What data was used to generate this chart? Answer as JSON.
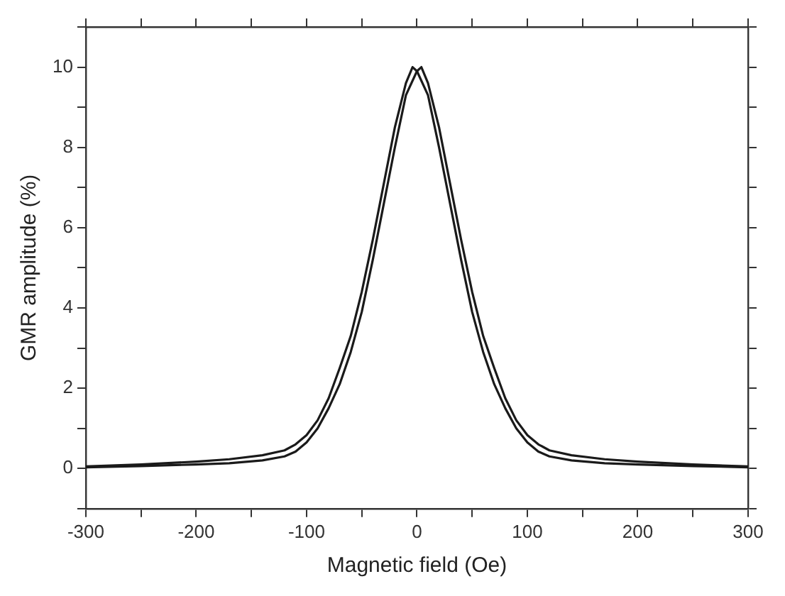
{
  "chart_data": {
    "type": "line",
    "xlabel": "Magnetic field (Oe)",
    "ylabel": "GMR amplitude (%)",
    "xlim": [
      -300,
      300
    ],
    "ylim": [
      -1,
      11
    ],
    "xticks": [
      -300,
      {
        "value": -250,
        "label": null
      },
      -200,
      {
        "value": -150,
        "label": null
      },
      -100,
      {
        "value": -50,
        "label": null
      },
      0,
      {
        "value": 50,
        "label": null
      },
      100,
      {
        "value": 150,
        "label": null
      },
      200,
      {
        "value": 250,
        "label": null
      },
      300
    ],
    "yticks": [
      {
        "value": -1,
        "label": null
      },
      0,
      {
        "value": 1,
        "label": null
      },
      2,
      {
        "value": 3,
        "label": null
      },
      4,
      {
        "value": 5,
        "label": null
      },
      6,
      {
        "value": 7,
        "label": null
      },
      8,
      {
        "value": 9,
        "label": null
      },
      10,
      {
        "value": 11,
        "label": null
      }
    ],
    "grid": false,
    "legend": false,
    "marker": "none",
    "line_style": "solid",
    "series": [
      {
        "color": "#1a1a1a",
        "x": [
          -300,
          -250,
          -200,
          -170,
          -140,
          -120,
          -110,
          -100,
          -90,
          -80,
          -70,
          -60,
          -50,
          -40,
          -30,
          -20,
          -10,
          -4,
          0,
          10,
          20,
          30,
          40,
          50,
          60,
          70,
          80,
          90,
          100,
          110,
          120,
          140,
          170,
          200,
          250,
          300
        ],
        "values": [
          0.05,
          0.1,
          0.17,
          0.23,
          0.33,
          0.45,
          0.6,
          0.83,
          1.2,
          1.75,
          2.5,
          3.3,
          4.4,
          5.7,
          7.1,
          8.5,
          9.6,
          10,
          9.9,
          9.3,
          8,
          6.6,
          5.2,
          3.9,
          2.9,
          2.1,
          1.5,
          1,
          0.65,
          0.42,
          0.3,
          0.2,
          0.13,
          0.1,
          0.06,
          0.03
        ]
      },
      {
        "color": "#1a1a1a",
        "x": [
          -300,
          -250,
          -200,
          -170,
          -140,
          -120,
          -110,
          -100,
          -90,
          -80,
          -70,
          -60,
          -50,
          -40,
          -30,
          -20,
          -10,
          0,
          4,
          10,
          20,
          30,
          40,
          50,
          60,
          70,
          80,
          90,
          100,
          110,
          120,
          140,
          170,
          200,
          250,
          300
        ],
        "values": [
          0.03,
          0.06,
          0.1,
          0.13,
          0.2,
          0.3,
          0.42,
          0.65,
          1,
          1.5,
          2.1,
          2.9,
          3.9,
          5.2,
          6.6,
          8,
          9.3,
          9.9,
          10,
          9.6,
          8.5,
          7.1,
          5.7,
          4.4,
          3.3,
          2.5,
          1.75,
          1.2,
          0.83,
          0.6,
          0.45,
          0.33,
          0.23,
          0.17,
          0.1,
          0.05
        ]
      }
    ]
  }
}
